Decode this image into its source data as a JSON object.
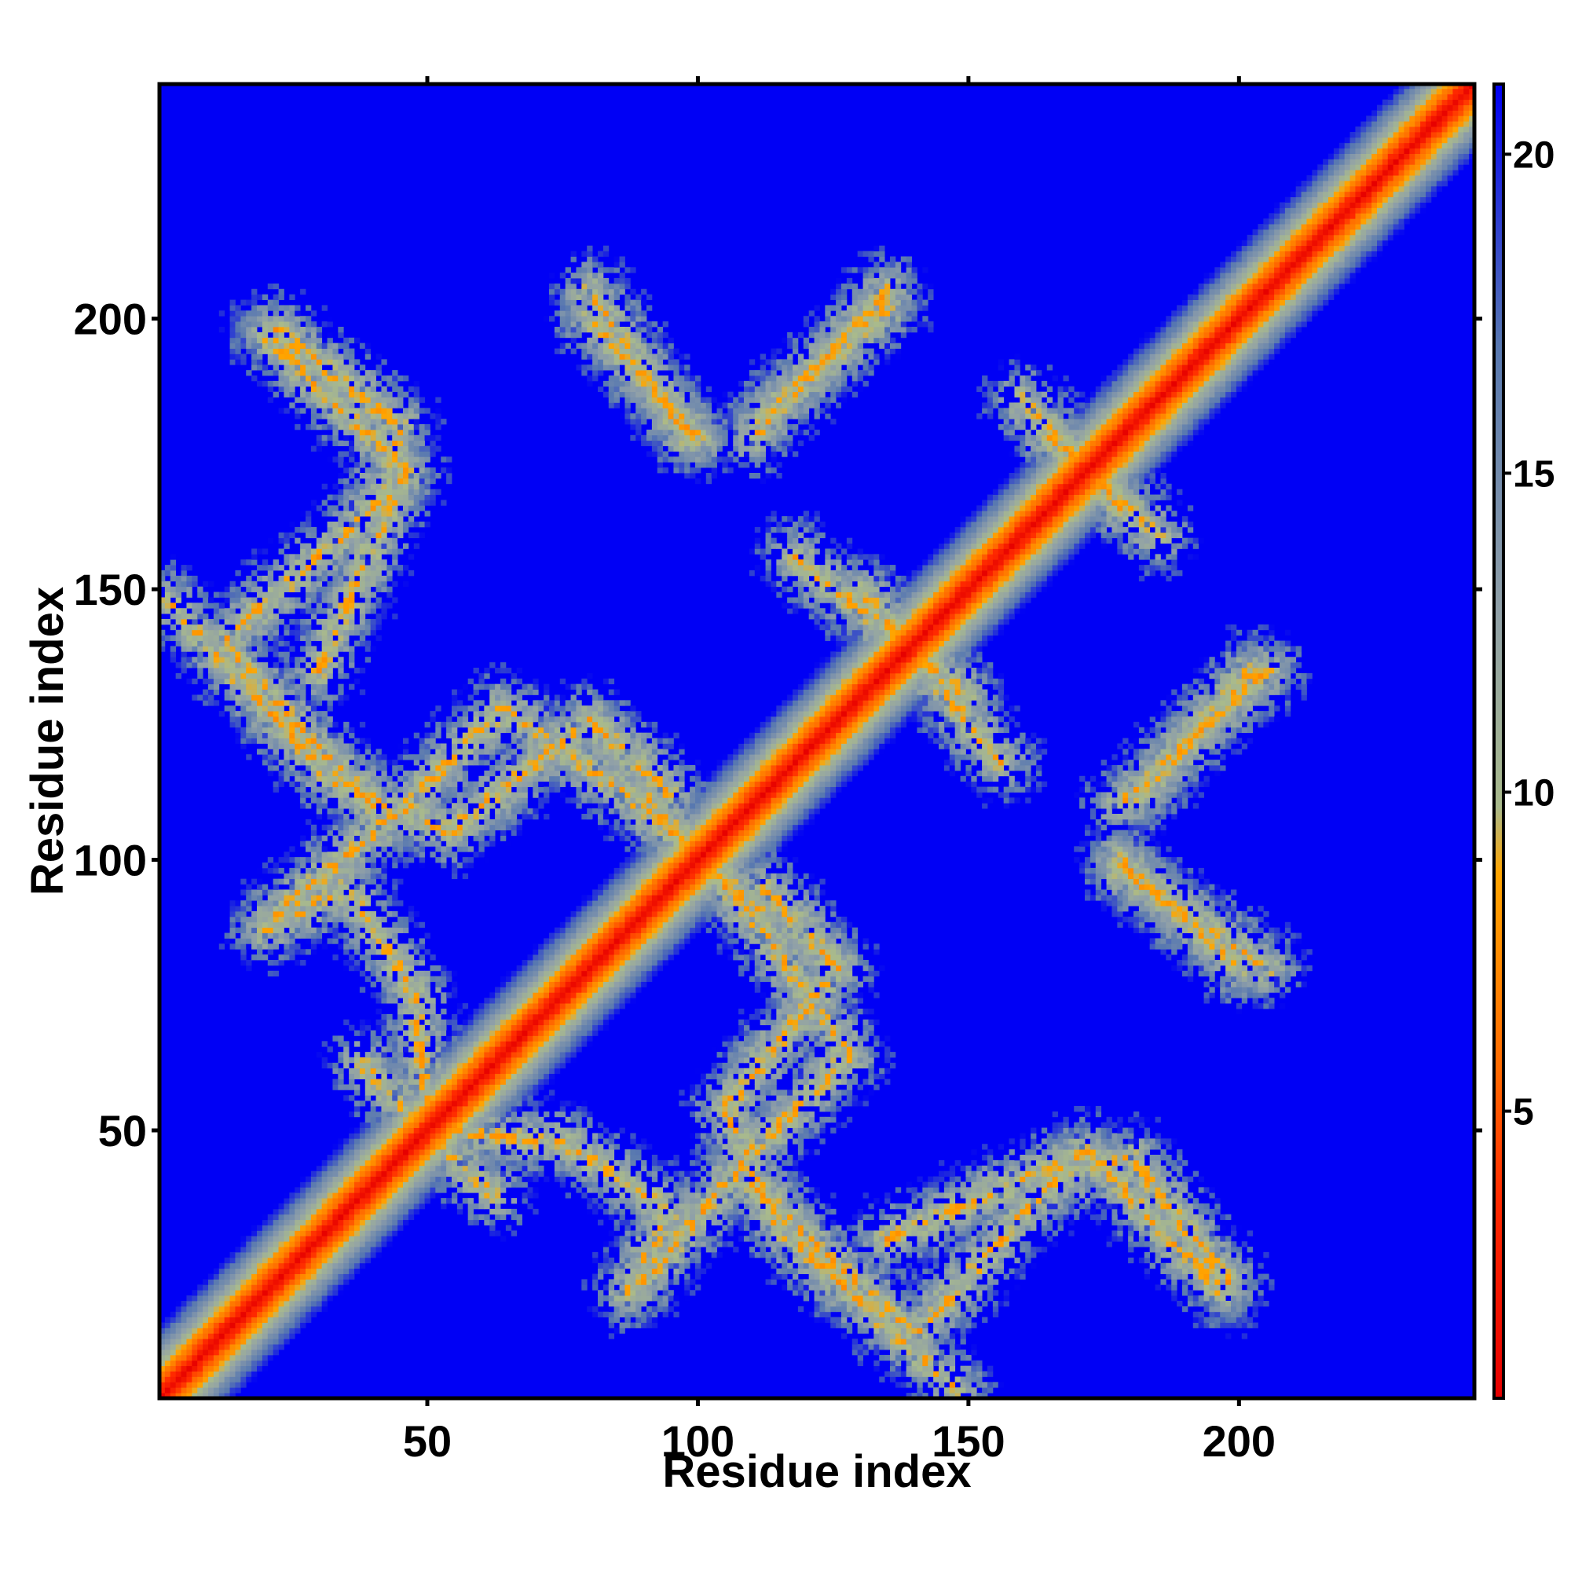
{
  "chart_data": {
    "type": "heatmap",
    "title": "",
    "xlabel": "Residue index",
    "ylabel": "Residue index",
    "xlim": [
      1,
      243
    ],
    "ylim": [
      1,
      243
    ],
    "x_ticks": [
      50,
      100,
      150,
      200
    ],
    "y_ticks": [
      50,
      100,
      150,
      200
    ],
    "x_tick_labels": [
      "50",
      "100",
      "150",
      "200"
    ],
    "y_tick_labels": [
      "50",
      "100",
      "150",
      "200"
    ],
    "colorbar": {
      "min": 0.5,
      "max": 21.1,
      "ticks": [
        5,
        10,
        15,
        20
      ],
      "tick_labels": [
        "5",
        "10",
        "15",
        "20"
      ],
      "colors": [
        "#e60000",
        "#ff2a00",
        "#ff6a00",
        "#ffa500",
        "#a9ba8c",
        "#90a0a8",
        "#5878b0",
        "#0000f5"
      ],
      "stops": [
        0.0,
        0.15,
        0.25,
        0.4,
        0.45,
        0.6,
        0.8,
        1.0
      ]
    },
    "background_value": 21.1,
    "diagonal": {
      "from": 1,
      "to": 243,
      "width": 5
    },
    "contact_bands": [
      {
        "from": [
          30,
          135
        ],
        "to": [
          46,
          172
        ]
      },
      {
        "from": [
          46,
          172
        ],
        "to": [
          20,
          197
        ]
      },
      {
        "from": [
          2,
          148
        ],
        "to": [
          32,
          115
        ]
      },
      {
        "from": [
          32,
          115
        ],
        "to": [
          54,
          105
        ]
      },
      {
        "from": [
          54,
          105
        ],
        "to": [
          80,
          126
        ]
      },
      {
        "from": [
          80,
          126
        ],
        "to": [
          95,
          112
        ]
      },
      {
        "from": [
          90,
          112
        ],
        "to": [
          112,
          87
        ]
      },
      {
        "from": [
          112,
          87
        ],
        "to": [
          128,
          64
        ]
      },
      {
        "from": [
          128,
          64
        ],
        "to": [
          110,
          46
        ]
      },
      {
        "from": [
          110,
          46
        ],
        "to": [
          90,
          22
        ]
      },
      {
        "from": [
          20,
          87
        ],
        "to": [
          35,
          95
        ]
      },
      {
        "from": [
          35,
          95
        ],
        "to": [
          48,
          75
        ]
      },
      {
        "from": [
          48,
          75
        ],
        "to": [
          50,
          50
        ]
      },
      {
        "from": [
          50,
          50
        ],
        "to": [
          62,
          38
        ]
      },
      {
        "from": [
          110,
          40
        ],
        "to": [
          140,
          12
        ]
      },
      {
        "from": [
          140,
          12
        ],
        "to": [
          165,
          40
        ]
      },
      {
        "from": [
          165,
          40
        ],
        "to": [
          180,
          45
        ]
      },
      {
        "from": [
          180,
          45
        ],
        "to": [
          198,
          22
        ]
      },
      {
        "from": [
          80,
          200
        ],
        "to": [
          100,
          178
        ]
      },
      {
        "from": [
          112,
          182
        ],
        "to": [
          135,
          202
        ]
      },
      {
        "from": [
          118,
          156
        ],
        "to": [
          150,
          130
        ]
      },
      {
        "from": [
          178,
          98
        ],
        "to": [
          205,
          80
        ]
      },
      {
        "from": [
          178,
          110
        ],
        "to": [
          205,
          135
        ]
      },
      {
        "from": [
          165,
          178
        ],
        "to": [
          185,
          160
        ]
      }
    ]
  }
}
